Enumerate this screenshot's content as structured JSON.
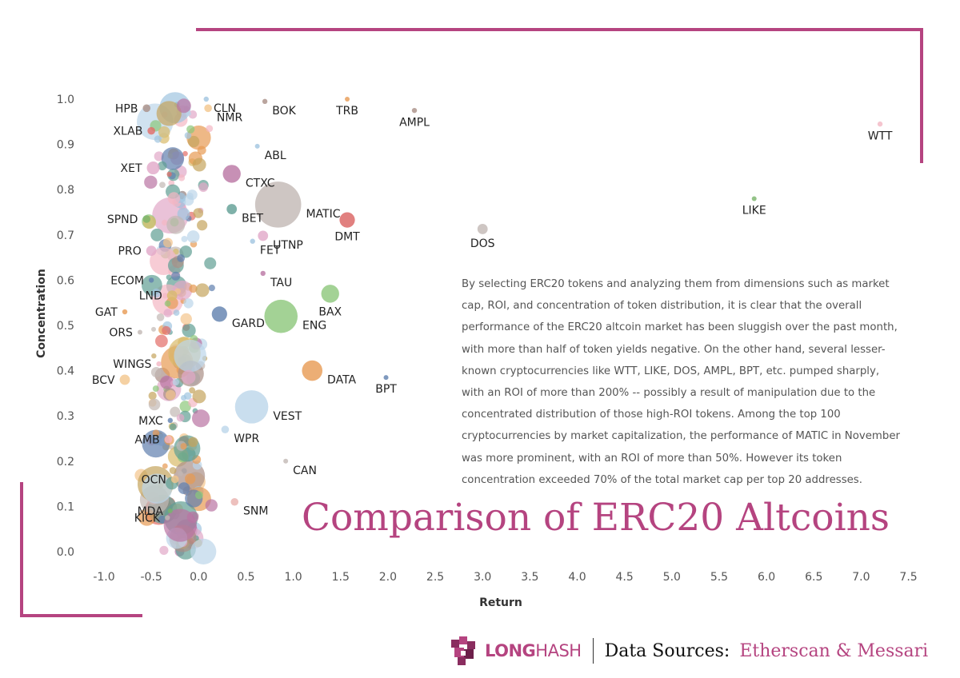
{
  "chart_data": {
    "type": "scatter",
    "title": "Comparison of ERC20 Altcoins",
    "xlabel": "Return",
    "ylabel": "Concentration",
    "xlim": [
      -1.1,
      7.65
    ],
    "ylim": [
      -0.03,
      1.02
    ],
    "x_ticks": [
      "-1.0",
      "-0.5",
      "0.0",
      "0.5",
      "1.0",
      "1.5",
      "2.0",
      "2.5",
      "3.0",
      "3.5",
      "4.0",
      "4.5",
      "5.0",
      "5.5",
      "6.0",
      "6.5",
      "7.0",
      "7.5"
    ],
    "y_ticks": [
      "0.0",
      "0.1",
      "0.2",
      "0.3",
      "0.4",
      "0.5",
      "0.6",
      "0.7",
      "0.8",
      "0.9",
      "1.0"
    ],
    "grid": false,
    "labeled_points": [
      {
        "name": "CLN",
        "x": 0.08,
        "y": 1.0,
        "size": 2,
        "color": "#a0c4e0"
      },
      {
        "name": "HPB",
        "x": -0.55,
        "y": 0.98,
        "size": 3,
        "color": "#a98f86"
      },
      {
        "name": "NMR",
        "x": 0.1,
        "y": 0.98,
        "size": 3,
        "color": "#f3c58c"
      },
      {
        "name": "BOK",
        "x": 0.7,
        "y": 0.995,
        "size": 2,
        "color": "#a98f86"
      },
      {
        "name": "TRB",
        "x": 1.57,
        "y": 1.0,
        "size": 1,
        "color": "#e79a52"
      },
      {
        "name": "AMPL",
        "x": 2.28,
        "y": 0.975,
        "size": 2,
        "color": "#a98f86"
      },
      {
        "name": "WTT",
        "x": 7.2,
        "y": 0.945,
        "size": 2,
        "color": "#f3b7c3"
      },
      {
        "name": "XLAB",
        "x": -0.5,
        "y": 0.93,
        "size": 3,
        "color": "#e26c66"
      },
      {
        "name": "ABL",
        "x": 0.62,
        "y": 0.896,
        "size": 1,
        "color": "#a0c4e0"
      },
      {
        "name": "XET",
        "x": -0.48,
        "y": 0.848,
        "size": 5,
        "color": "#e1a8c8"
      },
      {
        "name": "CTXC",
        "x": 0.35,
        "y": 0.835,
        "size": 7,
        "color": "#b974a2"
      },
      {
        "name": "MATIC",
        "x": 0.84,
        "y": 0.767,
        "size": 18,
        "color": "#c2b8b4"
      },
      {
        "name": "LIKE",
        "x": 5.87,
        "y": 0.78,
        "size": 1,
        "color": "#79b46a"
      },
      {
        "name": "SPND",
        "x": -0.55,
        "y": 0.735,
        "size": 3,
        "color": "#79b46a"
      },
      {
        "name": "BET",
        "x": 0.35,
        "y": 0.757,
        "size": 4,
        "color": "#5f9e93"
      },
      {
        "name": "DMT",
        "x": 1.57,
        "y": 0.733,
        "size": 6,
        "color": "#d9605f"
      },
      {
        "name": "DOS",
        "x": 3.0,
        "y": 0.713,
        "size": 4,
        "color": "#c2b8b4"
      },
      {
        "name": "UTNP",
        "x": 0.68,
        "y": 0.698,
        "size": 4,
        "color": "#e1a8c8"
      },
      {
        "name": "FET",
        "x": 0.57,
        "y": 0.686,
        "size": 2,
        "color": "#a0c4e0"
      },
      {
        "name": "PRO",
        "x": -0.5,
        "y": 0.665,
        "size": 4,
        "color": "#e1a8c8"
      },
      {
        "name": "TAU",
        "x": 0.68,
        "y": 0.615,
        "size": 2,
        "color": "#b974a2"
      },
      {
        "name": "ECOM",
        "x": -0.5,
        "y": 0.6,
        "size": 2,
        "color": "#5f7fae"
      },
      {
        "name": "LND",
        "x": -0.28,
        "y": 0.566,
        "size": 4,
        "color": "#d9ba6a"
      },
      {
        "name": "BAX",
        "x": 1.39,
        "y": 0.57,
        "size": 7,
        "color": "#8cc77b"
      },
      {
        "name": "GAT",
        "x": -0.78,
        "y": 0.53,
        "size": 2,
        "color": "#e79a52"
      },
      {
        "name": "GARD",
        "x": 0.22,
        "y": 0.525,
        "size": 6,
        "color": "#5f7fae"
      },
      {
        "name": "ENG",
        "x": 0.87,
        "y": 0.52,
        "size": 13,
        "color": "#8cc77b"
      },
      {
        "name": "ORS",
        "x": -0.62,
        "y": 0.485,
        "size": 1,
        "color": "#c2b8b4"
      },
      {
        "name": "WINGS",
        "x": -0.42,
        "y": 0.415,
        "size": 2,
        "color": "#f3b7c3"
      },
      {
        "name": "DATA",
        "x": 1.2,
        "y": 0.4,
        "size": 8,
        "color": "#e79a52"
      },
      {
        "name": "BPT",
        "x": 1.98,
        "y": 0.385,
        "size": 1,
        "color": "#5f7fae"
      },
      {
        "name": "BCV",
        "x": -0.78,
        "y": 0.38,
        "size": 4,
        "color": "#f3c58c"
      },
      {
        "name": "VEST",
        "x": 0.56,
        "y": 0.32,
        "size": 13,
        "color": "#bcd6ea"
      },
      {
        "name": "MXC",
        "x": -0.3,
        "y": 0.29,
        "size": 2,
        "color": "#5f7fae"
      },
      {
        "name": "AMB",
        "x": -0.32,
        "y": 0.248,
        "size": 3,
        "color": "#f3b7c3"
      },
      {
        "name": "WPR",
        "x": 0.28,
        "y": 0.27,
        "size": 3,
        "color": "#bcd6ea"
      },
      {
        "name": "CAN",
        "x": 0.92,
        "y": 0.2,
        "size": 1,
        "color": "#c2b8b4"
      },
      {
        "name": "OCN",
        "x": -0.25,
        "y": 0.16,
        "size": 3,
        "color": "#f3c58c"
      },
      {
        "name": "MDA",
        "x": -0.3,
        "y": 0.09,
        "size": 1,
        "color": "#79b46a"
      },
      {
        "name": "KICK",
        "x": -0.33,
        "y": 0.075,
        "size": 2,
        "color": "#c2b8b4"
      },
      {
        "name": "SNM",
        "x": 0.38,
        "y": 0.11,
        "size": 3,
        "color": "#e8b0ac"
      }
    ]
  },
  "description": "By selecting ERC20 tokens and analyzing them from dimensions such as market cap, ROI, and concentration of token distribution, it is clear that the overall performance of the ERC20 altcoin market has been sluggish over the past month, with more than half of token yields negative. On the other hand, several lesser-known cryptocurrencies like WTT, LIKE, DOS, AMPL, BPT, etc. pumped sharply, with an ROI of more than 200% -- possibly a result of manipulation due to the concentrated distribution of those high-ROI tokens. Among the top 100 cryptocurrencies by market capitalization, the performance of MATIC in November was more prominent, with an ROI of more than 50%. However its token concentration exceeded 70% of the total market cap per top 20 addresses.",
  "footer": {
    "logo_bold": "LONG",
    "logo_light": "HASH",
    "sources_label": "Data Sources:",
    "sources_value": "Etherscan & Messari"
  },
  "colors": {
    "accent": "#b54480",
    "palette": [
      "#5f9e93",
      "#e79a52",
      "#a0c4e0",
      "#e26c66",
      "#8cc77b",
      "#d9ba6a",
      "#b974a2",
      "#f3b7c3",
      "#a98f86",
      "#c2b8b4",
      "#5f7fae",
      "#bcd6ea",
      "#f3c58c",
      "#e1a8c8",
      "#c5a45c"
    ]
  }
}
